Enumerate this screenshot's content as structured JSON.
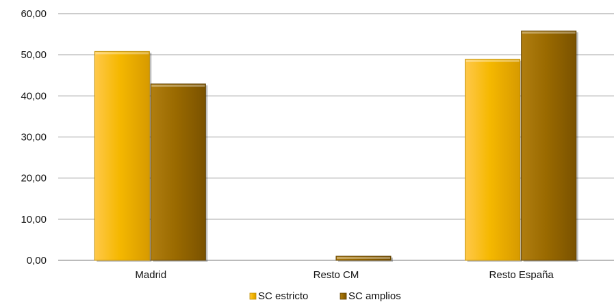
{
  "chart_data": {
    "type": "bar",
    "categories": [
      "Madrid",
      "Resto CM",
      "Resto España"
    ],
    "series": [
      {
        "name": "SC estricto",
        "values": [
          50.8,
          0.0,
          48.9
        ],
        "color": "#F5B800"
      },
      {
        "name": "SC amplios",
        "values": [
          42.9,
          1.0,
          55.8
        ],
        "color": "#9A6A00"
      }
    ],
    "ylim": [
      0,
      60
    ],
    "yticks": [
      0,
      10,
      20,
      30,
      40,
      50,
      60
    ],
    "ytick_labels": [
      "0,00",
      "10,00",
      "20,00",
      "30,00",
      "40,00",
      "50,00",
      "60,00"
    ],
    "grid": true,
    "legend_position": "bottom",
    "title": "",
    "xlabel": "",
    "ylabel": ""
  }
}
